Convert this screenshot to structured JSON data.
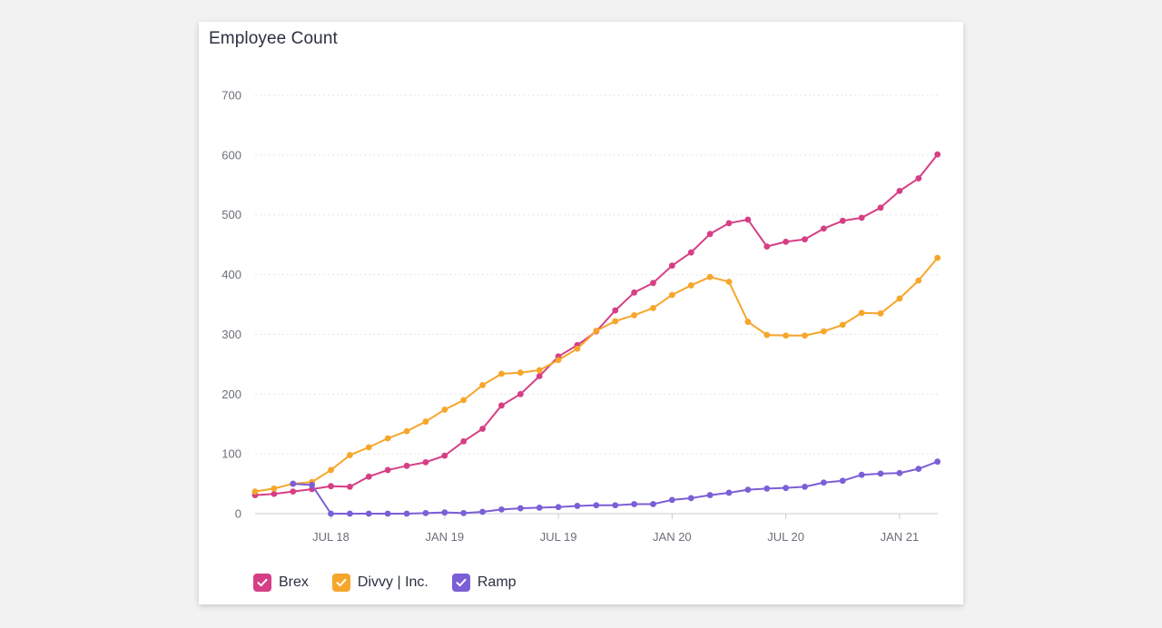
{
  "chart": {
    "title": "Employee Count"
  },
  "chart_data": {
    "type": "line",
    "title": "Employee Count",
    "xlabel": "",
    "ylabel": "",
    "ylim": [
      0,
      700
    ],
    "yticks": [
      0,
      100,
      200,
      300,
      400,
      500,
      600,
      700
    ],
    "xtick_labels": [
      "JUL 18",
      "JAN 19",
      "JUL 19",
      "JAN 20",
      "JUL 20",
      "JAN 21"
    ],
    "xtick_index": [
      4,
      10,
      16,
      22,
      28,
      34
    ],
    "grid": true,
    "legend_position": "bottom-left",
    "series": [
      {
        "name": "Brex",
        "color": "#d63f85",
        "values": [
          31,
          33,
          37,
          41,
          46,
          45,
          62,
          73,
          80,
          86,
          97,
          121,
          142,
          181,
          200,
          230,
          263,
          282,
          305,
          340,
          370,
          386,
          415,
          437,
          468,
          486,
          492,
          447,
          455,
          459,
          477,
          490,
          495,
          512,
          540,
          561,
          601
        ]
      },
      {
        "name": "Divvy | Inc.",
        "color": "#f6a62a",
        "values": [
          37,
          42,
          50,
          53,
          73,
          98,
          111,
          126,
          138,
          154,
          174,
          190,
          215,
          234,
          236,
          240,
          257,
          276,
          306,
          322,
          332,
          344,
          366,
          382,
          396,
          388,
          321,
          299,
          298,
          298,
          305,
          316,
          336,
          335,
          360,
          390,
          428
        ]
      },
      {
        "name": "Ramp",
        "color": "#7b5fd6",
        "values": [
          null,
          null,
          50,
          48,
          0,
          0,
          0,
          0,
          0,
          1,
          2,
          1,
          3,
          7,
          9,
          10,
          11,
          13,
          14,
          14,
          16,
          16,
          23,
          26,
          31,
          35,
          40,
          42,
          43,
          45,
          52,
          55,
          65,
          67,
          68,
          75,
          87
        ]
      }
    ]
  },
  "legend": {
    "items": [
      {
        "label": "Brex",
        "color": "#d63f85"
      },
      {
        "label": "Divvy | Inc.",
        "color": "#f6a62a"
      },
      {
        "label": "Ramp",
        "color": "#7b5fd6"
      }
    ]
  }
}
